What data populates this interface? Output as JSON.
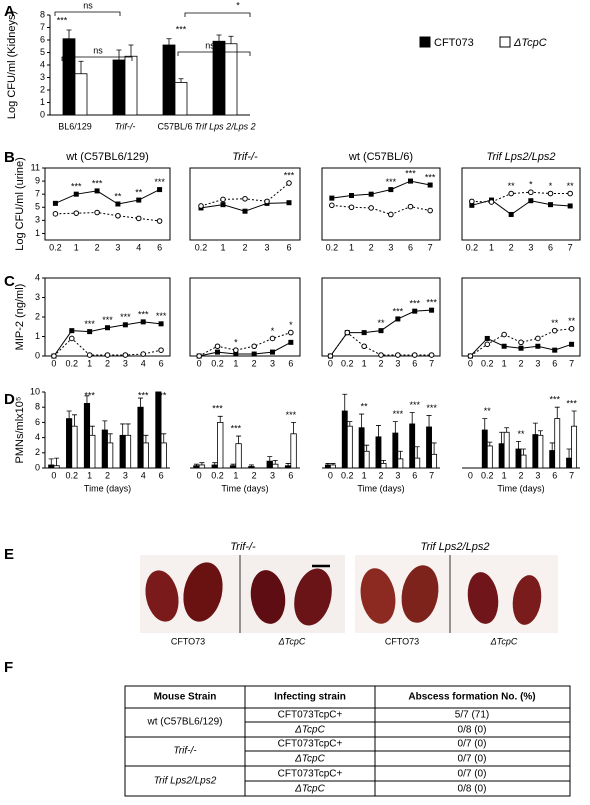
{
  "panel_labels": [
    "A",
    "B",
    "C",
    "D",
    "E",
    "F"
  ],
  "chart_data": [
    {
      "type": "bar",
      "ylabel": "Log CFU/ml (Kidneys)",
      "categories": [
        "BL6/129",
        "Trif-/-",
        "C57BL/6",
        "Trif Lps 2/Lps 2"
      ],
      "series": [
        {
          "name": "CFT073",
          "color": "#000000",
          "values": [
            6.1,
            4.4,
            5.6,
            5.9
          ],
          "errors": [
            0.7,
            0.8,
            0.5,
            0.5
          ]
        },
        {
          "name": "ΔTcpC",
          "color": "#ffffff",
          "values": [
            3.3,
            4.7,
            2.6,
            5.7
          ],
          "errors": [
            1.0,
            0.9,
            0.3,
            0.6
          ]
        }
      ],
      "ylim": [
        0,
        8
      ],
      "yticks": [
        0,
        1,
        2,
        3,
        4,
        5,
        6,
        7,
        8
      ],
      "annotations": [
        "ns",
        "***",
        "ns",
        "***",
        "ns",
        "*"
      ]
    },
    {
      "type": "line",
      "title": "wt (C57BL6/129)",
      "ylabel": "Log CFU/ml (urine)",
      "categories": [
        "0.2",
        "1",
        "2",
        "3",
        "4",
        "6"
      ],
      "series": [
        {
          "color": "#000000",
          "linestyle": "solid",
          "marker": "square",
          "values": [
            5.6,
            7.0,
            7.5,
            5.5,
            6.1,
            7.7
          ]
        },
        {
          "color": "#000000",
          "linestyle": "dashed",
          "marker": "circle",
          "values": [
            4.0,
            4.1,
            4.2,
            3.7,
            3.3,
            2.9
          ]
        }
      ],
      "ylim": [
        0,
        11
      ],
      "yticks": [
        1,
        3,
        5,
        7,
        9,
        11
      ],
      "significance": [
        null,
        "***",
        "***",
        "**",
        "**",
        "***"
      ]
    },
    {
      "type": "line",
      "title": "Trif-/-",
      "categories": [
        "0.2",
        "1",
        "2",
        "3",
        "6"
      ],
      "series": [
        {
          "color": "#000000",
          "linestyle": "solid",
          "marker": "square",
          "values": [
            4.9,
            5.4,
            4.4,
            5.6,
            5.7
          ]
        },
        {
          "color": "#000000",
          "linestyle": "dashed",
          "marker": "circle",
          "values": [
            5.2,
            6.2,
            6.3,
            5.9,
            8.7
          ]
        }
      ],
      "ylim": [
        0,
        11
      ],
      "significance": [
        null,
        null,
        null,
        null,
        "***"
      ]
    },
    {
      "type": "line",
      "title": "wt (C57BL/6)",
      "categories": [
        "0.2",
        "1",
        "2",
        "3",
        "6",
        "7"
      ],
      "series": [
        {
          "color": "#000000",
          "linestyle": "solid",
          "marker": "square",
          "values": [
            6.4,
            6.8,
            7.0,
            7.7,
            9.0,
            8.4
          ]
        },
        {
          "color": "#000000",
          "linestyle": "dashed",
          "marker": "circle",
          "values": [
            5.3,
            5.0,
            4.9,
            3.9,
            5.1,
            4.5
          ]
        }
      ],
      "ylim": [
        0,
        11
      ],
      "significance": [
        null,
        null,
        null,
        "***",
        "***",
        "***"
      ]
    },
    {
      "type": "line",
      "title": "Trif Lps2/Lps2",
      "categories": [
        "0.2",
        "1",
        "2",
        "3",
        "6",
        "7"
      ],
      "series": [
        {
          "color": "#000000",
          "linestyle": "solid",
          "marker": "square",
          "values": [
            5.3,
            6.1,
            3.9,
            6.0,
            5.4,
            5.2
          ]
        },
        {
          "color": "#000000",
          "linestyle": "dashed",
          "marker": "circle",
          "values": [
            5.9,
            5.8,
            7.1,
            7.3,
            7.1,
            7.1
          ]
        }
      ],
      "ylim": [
        0,
        11
      ],
      "significance": [
        null,
        null,
        "**",
        "*",
        "*",
        "**"
      ]
    },
    {
      "type": "line",
      "ylabel": "MIP-2 (ng/ml)",
      "categories": [
        "0",
        "0.2",
        "1",
        "2",
        "3",
        "4",
        "6"
      ],
      "series": [
        {
          "color": "#000000",
          "linestyle": "solid",
          "marker": "square",
          "values": [
            0,
            1.3,
            1.25,
            1.45,
            1.6,
            1.75,
            1.65
          ]
        },
        {
          "color": "#000000",
          "linestyle": "dashed",
          "marker": "circle",
          "values": [
            0,
            0.9,
            0.05,
            0.05,
            0.05,
            0.1,
            0.3
          ]
        }
      ],
      "ylim": [
        0,
        4
      ],
      "yticks": [
        0,
        1,
        2,
        3,
        4
      ],
      "significance": [
        null,
        null,
        "***",
        "***",
        "***",
        "***",
        "***"
      ]
    },
    {
      "type": "line",
      "categories": [
        "0",
        "0.2",
        "1",
        "2",
        "3",
        "6"
      ],
      "series": [
        {
          "color": "#000000",
          "linestyle": "solid",
          "marker": "square",
          "values": [
            0,
            0.2,
            0.1,
            0.1,
            0.2,
            0.7
          ]
        },
        {
          "color": "#000000",
          "linestyle": "dashed",
          "marker": "circle",
          "values": [
            0,
            0.5,
            0.3,
            0.5,
            0.9,
            1.2
          ]
        }
      ],
      "ylim": [
        0,
        4
      ],
      "significance": [
        null,
        null,
        "*",
        null,
        "*",
        "*"
      ]
    },
    {
      "type": "line",
      "categories": [
        "0",
        "0.2",
        "1",
        "2",
        "3",
        "6",
        "7"
      ],
      "series": [
        {
          "color": "#000000",
          "linestyle": "solid",
          "marker": "square",
          "values": [
            0,
            1.2,
            1.2,
            1.3,
            1.9,
            2.3,
            2.35
          ]
        },
        {
          "color": "#000000",
          "linestyle": "dashed",
          "marker": "circle",
          "values": [
            0,
            1.2,
            0.5,
            0.05,
            0.05,
            0.05,
            0.05
          ]
        }
      ],
      "ylim": [
        0,
        4
      ],
      "significance": [
        null,
        null,
        null,
        "**",
        "***",
        "***",
        "***"
      ]
    },
    {
      "type": "line",
      "categories": [
        "0",
        "0.2",
        "1",
        "2",
        "3",
        "6",
        "7"
      ],
      "series": [
        {
          "color": "#000000",
          "linestyle": "solid",
          "marker": "square",
          "values": [
            0,
            0.9,
            0.5,
            0.4,
            0.5,
            0.3,
            0.6
          ]
        },
        {
          "color": "#000000",
          "linestyle": "dashed",
          "marker": "circle",
          "values": [
            0,
            0.6,
            1.1,
            0.7,
            0.9,
            1.3,
            1.4
          ]
        }
      ],
      "ylim": [
        0,
        4
      ],
      "significance": [
        null,
        null,
        null,
        null,
        null,
        "**",
        "**"
      ]
    },
    {
      "type": "bar",
      "ylabel": "PMNs/mlx10⁵",
      "xlabel": "Time (days)",
      "categories": [
        "0",
        "0.2",
        "1",
        "2",
        "3",
        "4",
        "6"
      ],
      "series": [
        {
          "color": "#000000",
          "values": [
            0.4,
            6.5,
            8.5,
            5,
            4.3,
            8,
            10
          ],
          "errors": [
            0.8,
            1.0,
            1.0,
            1.2,
            1.5,
            1.2,
            0
          ]
        },
        {
          "color": "#ffffff",
          "values": [
            0.3,
            5.5,
            4.3,
            3.3,
            4.3,
            3.3,
            3.3
          ],
          "errors": [
            1.0,
            1.5,
            1.2,
            1.2,
            1.5,
            1.0,
            1.2
          ]
        }
      ],
      "ylim": [
        0,
        10
      ],
      "yticks": [
        0,
        2,
        4,
        6,
        8,
        10
      ],
      "significance": [
        null,
        null,
        "***",
        null,
        null,
        "***",
        "***"
      ]
    },
    {
      "type": "bar",
      "xlabel": "Time (days)",
      "categories": [
        "0",
        "0.2",
        "1",
        "2",
        "3",
        "6"
      ],
      "series": [
        {
          "color": "#000000",
          "values": [
            0.3,
            0.4,
            0.3,
            0.2,
            0.9,
            0.3
          ],
          "errors": [
            0.2,
            0.3,
            0.2,
            0.2,
            0.6,
            0.3
          ]
        },
        {
          "color": "#ffffff",
          "values": [
            0.4,
            6.0,
            3.2,
            0,
            0.5,
            4.5
          ],
          "errors": [
            0.3,
            0.8,
            1.0,
            0,
            0.5,
            1.5
          ]
        }
      ],
      "ylim": [
        0,
        10
      ],
      "significance": [
        null,
        "***",
        "***",
        null,
        null,
        "***"
      ]
    },
    {
      "type": "bar",
      "xlabel": "Time (days)",
      "categories": [
        "0",
        "0.2",
        "1",
        "2",
        "3",
        "6",
        "7"
      ],
      "series": [
        {
          "color": "#000000",
          "values": [
            0.4,
            7.5,
            5.3,
            4.1,
            4.6,
            5.8,
            5.4
          ],
          "errors": [
            0.2,
            2.2,
            1.8,
            1.5,
            1.5,
            1.5,
            1.5
          ]
        },
        {
          "color": "#ffffff",
          "values": [
            0.4,
            5.5,
            2.2,
            0.6,
            1.2,
            1.3,
            1.8
          ],
          "errors": [
            0.2,
            0.6,
            0.8,
            0.4,
            1.0,
            1.5,
            1.5
          ]
        }
      ],
      "ylim": [
        0,
        10
      ],
      "significance": [
        null,
        null,
        "**",
        null,
        "***",
        "***",
        "***"
      ]
    },
    {
      "type": "bar",
      "xlabel": "Time (days)",
      "categories": [
        "0",
        "0.2",
        "1",
        "2",
        "3",
        "6",
        "7"
      ],
      "series": [
        {
          "color": "#000000",
          "values": [
            0,
            5,
            3.2,
            2.5,
            4.4,
            2.3,
            1.3
          ],
          "errors": [
            0,
            1.5,
            1.5,
            1.0,
            1.5,
            1.0,
            1.2
          ]
        },
        {
          "color": "#ffffff",
          "values": [
            0,
            2.9,
            4.7,
            1.7,
            4.3,
            6.5,
            5.5
          ],
          "errors": [
            0,
            0.5,
            0.6,
            0.8,
            0.6,
            1.5,
            2.0
          ]
        }
      ],
      "ylim": [
        0,
        10
      ],
      "significance": [
        null,
        "**",
        null,
        "**",
        null,
        "***",
        "***"
      ]
    }
  ],
  "images": {
    "groups": [
      {
        "label": "Trif-/-",
        "captions": [
          "CFTO73",
          "ΔTcpC"
        ]
      },
      {
        "label": "Trif Lps2/Lps2",
        "captions": [
          "CFTO73",
          "ΔTcpC"
        ]
      }
    ]
  },
  "table": {
    "header": [
      "Mouse Strain",
      "Infecting strain",
      "Abscess formation No. (%)"
    ],
    "groups": [
      {
        "strain": "wt (C57BL6/129)",
        "rows": [
          [
            "CFT073TcpC+",
            "5/7 (71)"
          ],
          [
            "ΔTcpC",
            "0/8 (0)"
          ]
        ]
      },
      {
        "strain": "Trif-/-",
        "rows": [
          [
            "CFT073TcpC+",
            "0/7 (0)"
          ],
          [
            "ΔTcpC",
            "0/7 (0)"
          ]
        ]
      },
      {
        "strain": "Trif Lps2/Lps2",
        "rows": [
          [
            "CFT073TcpC+",
            "0/7 (0)"
          ],
          [
            "ΔTcpC",
            "0/8 (0)"
          ]
        ]
      }
    ]
  }
}
